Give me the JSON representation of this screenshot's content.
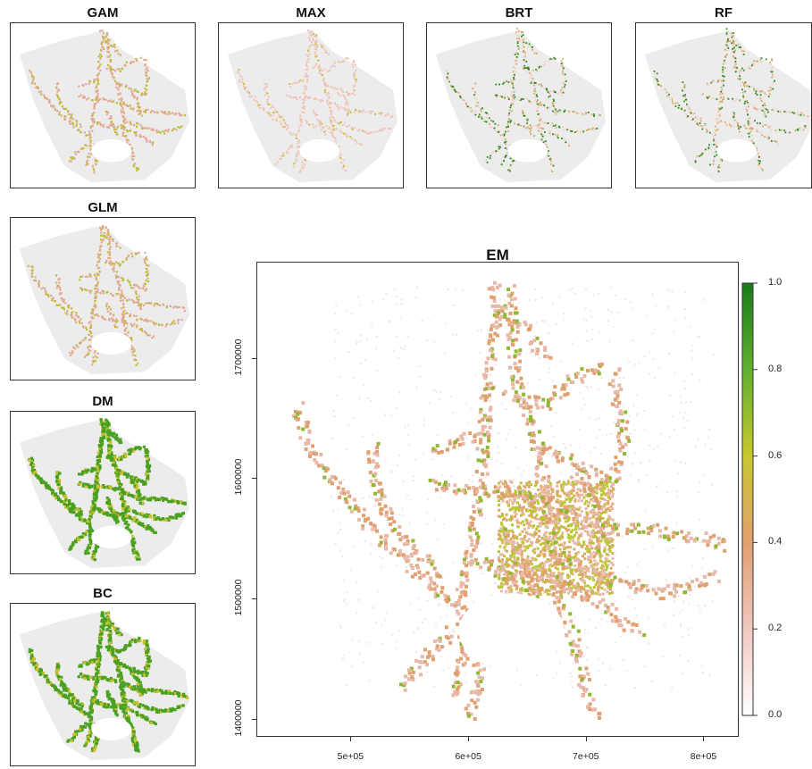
{
  "panels": [
    {
      "id": "gam",
      "title": "GAM",
      "style": "sparse"
    },
    {
      "id": "max",
      "title": "MAX",
      "style": "faint"
    },
    {
      "id": "brt",
      "title": "BRT",
      "style": "speckled"
    },
    {
      "id": "rf",
      "title": "RF",
      "style": "speckled"
    },
    {
      "id": "glm",
      "title": "GLM",
      "style": "sparse"
    },
    {
      "id": "dm",
      "title": "DM",
      "style": "dense"
    },
    {
      "id": "bc",
      "title": "BC",
      "style": "dense"
    }
  ],
  "main_map": {
    "title": "EM",
    "x_ticks": [
      "5e+05",
      "6e+05",
      "7e+05",
      "8e+05"
    ],
    "x_tick_values": [
      500000,
      600000,
      700000,
      800000
    ],
    "y_ticks": [
      "1400000",
      "1500000",
      "1600000",
      "1700000"
    ],
    "y_tick_values": [
      1400000,
      1500000,
      1600000,
      1700000
    ],
    "x_range": [
      420000,
      830000
    ],
    "y_range": [
      1385000,
      1780000
    ]
  },
  "legend": {
    "labels": [
      "1.0",
      "0.8",
      "0.6",
      "0.4",
      "0.2",
      "0.0"
    ],
    "values": [
      1.0,
      0.8,
      0.6,
      0.4,
      0.2,
      0.0
    ],
    "colors": [
      "#ffffff",
      "#f0c8c0",
      "#e0a070",
      "#c8c830",
      "#60b030",
      "#1a7a1a"
    ]
  }
}
